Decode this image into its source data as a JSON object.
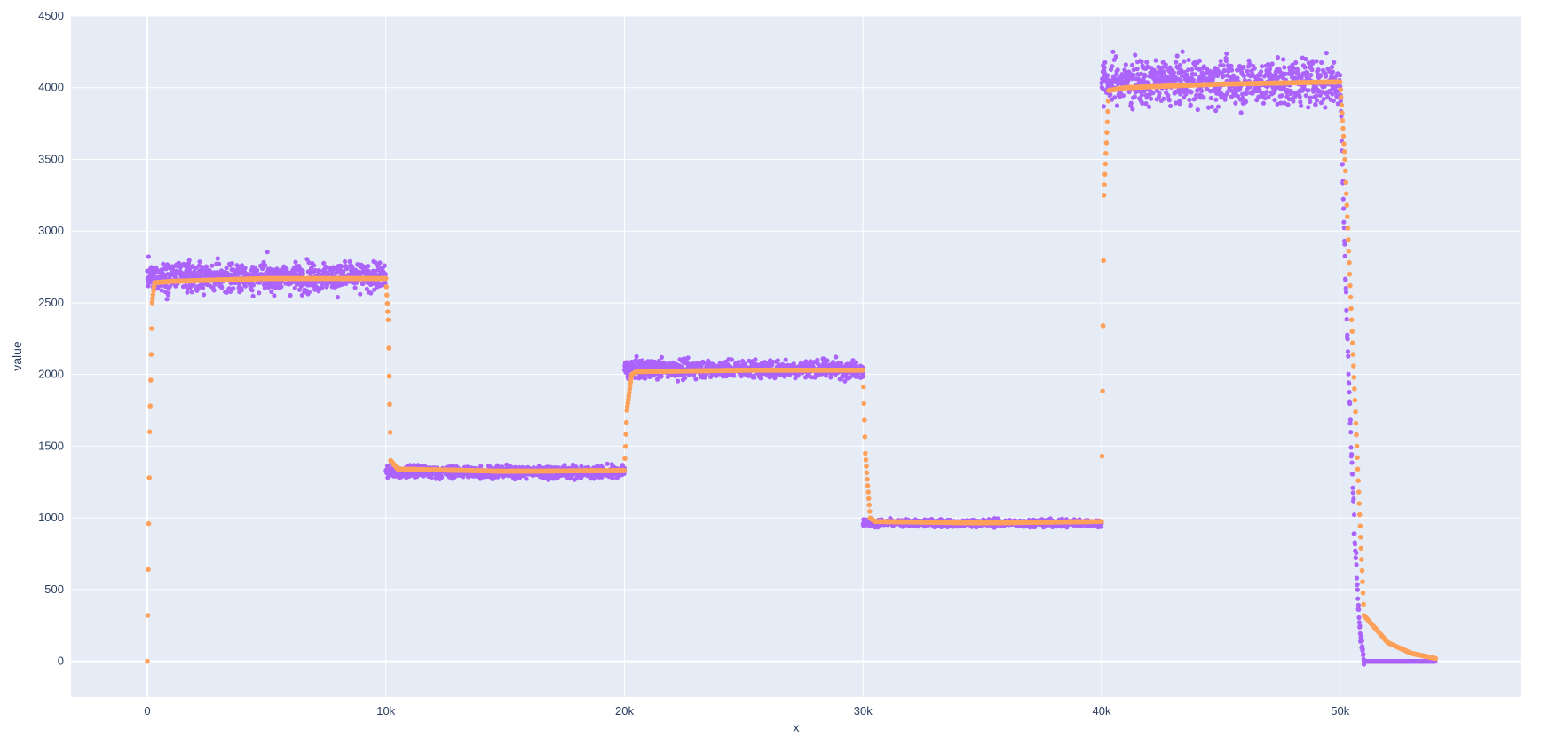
{
  "chart_data": {
    "type": "scatter",
    "title": "",
    "xlabel": "x",
    "ylabel": "value",
    "xlim": [
      -3200,
      57600
    ],
    "ylim": [
      -250,
      4500
    ],
    "x_ticks": [
      0,
      10000,
      20000,
      30000,
      40000,
      50000
    ],
    "x_tick_labels": [
      "0",
      "10k",
      "20k",
      "30k",
      "40k",
      "50k"
    ],
    "y_ticks": [
      0,
      500,
      1000,
      1500,
      2000,
      2500,
      3000,
      3500,
      4000,
      4500
    ],
    "y_tick_labels": [
      "0",
      "500",
      "1000",
      "1500",
      "2000",
      "2500",
      "3000",
      "3500",
      "4000",
      "4500"
    ],
    "grid": true,
    "legend": "none",
    "colors": {
      "plot_bg": "#e5ecf6",
      "grid": "#ffffff",
      "raw": "#ab63fa",
      "smoothed": "#ffa15a"
    },
    "series": [
      {
        "marker": "dots",
        "color": "#ab63fa",
        "segments": [
          {
            "x_start": 0,
            "x_end": 10000,
            "mean": 2680,
            "noise": 70
          },
          {
            "x_start": 10000,
            "x_end": 20000,
            "mean": 1320,
            "noise": 30
          },
          {
            "x_start": 20000,
            "x_end": 30000,
            "mean": 2040,
            "noise": 45
          },
          {
            "x_start": 30000,
            "x_end": 40000,
            "mean": 965,
            "noise": 18
          },
          {
            "x_start": 40000,
            "x_end": 50000,
            "mean": 4040,
            "noise": 110
          },
          {
            "x_start": 50000,
            "x_end": 51000,
            "mean": 0,
            "decay_from": 4040
          },
          {
            "x_start": 51000,
            "x_end": 54000,
            "mean": 0,
            "noise": 0
          }
        ]
      },
      {
        "marker": "dots",
        "color": "#ffa15a",
        "points": [
          [
            0,
            0
          ],
          [
            100,
            1600
          ],
          [
            200,
            2500
          ],
          [
            300,
            2640
          ],
          [
            1000,
            2650
          ],
          [
            5000,
            2670
          ],
          [
            10000,
            2670
          ],
          [
            10100,
            2380
          ],
          [
            10200,
            1400
          ],
          [
            10500,
            1340
          ],
          [
            15000,
            1325
          ],
          [
            20000,
            1330
          ],
          [
            20100,
            1750
          ],
          [
            20300,
            2000
          ],
          [
            20500,
            2020
          ],
          [
            25000,
            2030
          ],
          [
            30000,
            2030
          ],
          [
            30100,
            1450
          ],
          [
            30300,
            1000
          ],
          [
            30500,
            975
          ],
          [
            35000,
            965
          ],
          [
            40000,
            975
          ],
          [
            40100,
            3250
          ],
          [
            40300,
            3980
          ],
          [
            41000,
            4000
          ],
          [
            45000,
            4025
          ],
          [
            50000,
            4040
          ],
          [
            50200,
            3500
          ],
          [
            50500,
            2300
          ],
          [
            50800,
            1100
          ],
          [
            51000,
            320
          ],
          [
            52000,
            130
          ],
          [
            53000,
            55
          ],
          [
            54000,
            20
          ]
        ]
      }
    ]
  }
}
